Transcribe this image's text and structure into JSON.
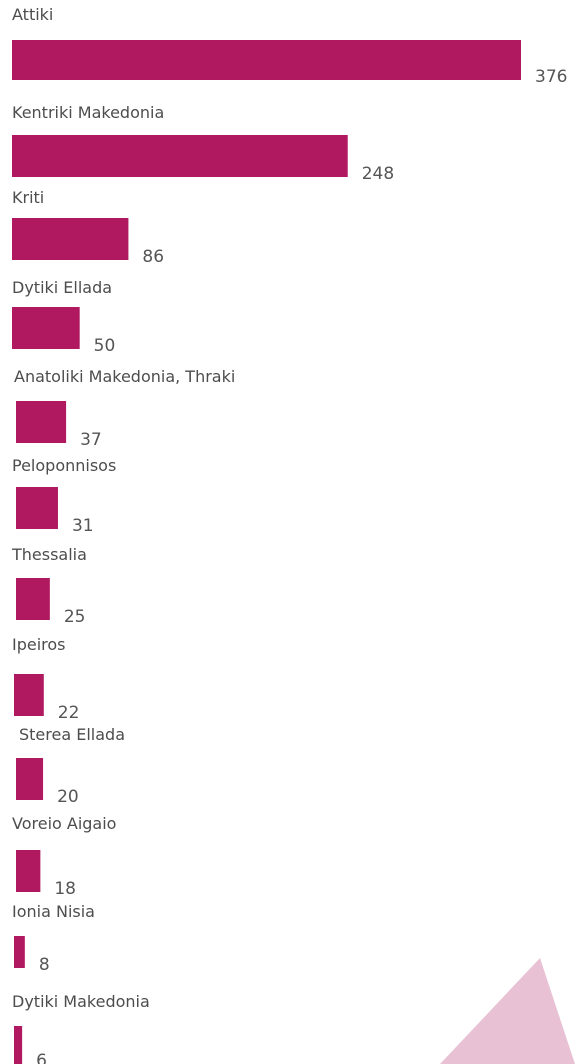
{
  "chart_data": {
    "type": "bar",
    "orientation": "horizontal",
    "categories": [
      "Attiki",
      "Kentriki Makedonia",
      "Kriti",
      "Dytiki Ellada",
      "Anatoliki Makedonia, Thraki",
      "Peloponnisos",
      "Thessalia",
      "Ipeiros",
      "Sterea Ellada",
      "Voreio Aigaio",
      "Ionia Nisia",
      "Dytiki Makedonia"
    ],
    "values": [
      376,
      248,
      86,
      50,
      37,
      31,
      25,
      22,
      20,
      18,
      8,
      6
    ],
    "title": "",
    "xlabel": "",
    "ylabel": "",
    "xlim": [
      0,
      376
    ],
    "grid": false,
    "legend": "none",
    "data_labels": true
  },
  "colors": {
    "bar": "#b01860",
    "decoration": "#e8c2d4",
    "label_text": "#4d4d4d",
    "value_text": "#555555"
  }
}
